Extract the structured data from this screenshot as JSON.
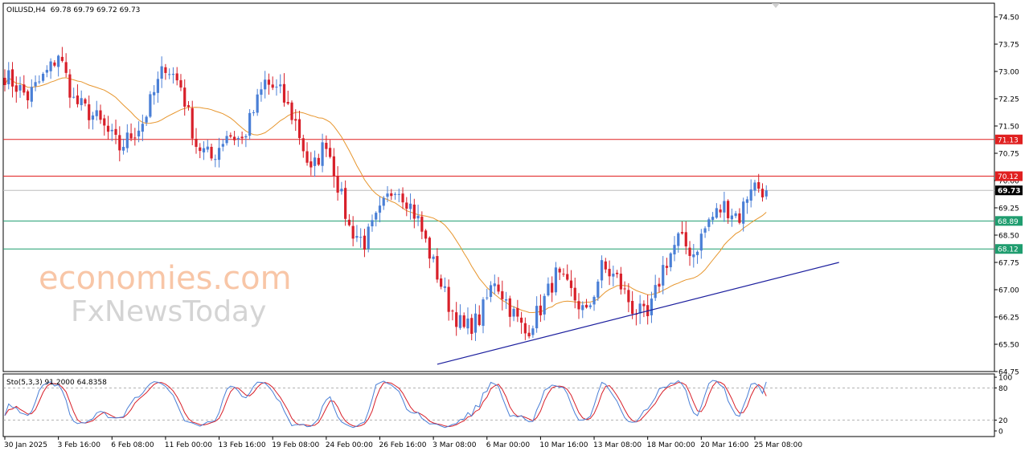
{
  "header": {
    "symbol_label": "OILUSD,H4",
    "ohlc": "69.78 69.79 69.72 69.73"
  },
  "watermark": {
    "line1": "economies.com",
    "line2": "FxNewsToday"
  },
  "colors": {
    "bull": "#4a7fd6",
    "bear": "#d8202a",
    "ma": "#e7962e",
    "resistance": "#e02020",
    "support": "#1f9d6f",
    "trendline": "#1c1f9e",
    "current": "#000000",
    "stoch_main": "#4a7fd6",
    "stoch_signal": "#d8202a"
  },
  "chart_data": [
    {
      "type": "candlestick",
      "symbol": "OILUSD",
      "timeframe": "H4",
      "ylim": [
        64.75,
        74.875
      ],
      "y_ticks": [
        "74.50",
        "73.75",
        "73.00",
        "72.25",
        "71.50",
        "70.75",
        "70.00",
        "69.25",
        "68.50",
        "67.75",
        "67.00",
        "66.25",
        "65.50",
        "64.75"
      ],
      "x_ticks": [
        "30 Jan 2025",
        "3 Feb 16:00",
        "6 Feb 08:00",
        "11 Feb 00:00",
        "13 Feb 16:00",
        "19 Feb 08:00",
        "24 Feb 00:00",
        "26 Feb 16:00",
        "3 Mar 08:00",
        "6 Mar 00:00",
        "10 Mar 16:00",
        "13 Mar 08:00",
        "18 Mar 00:00",
        "20 Mar 16:00",
        "25 Mar 08:00"
      ],
      "close_anchors": [
        [
          0,
          72.9
        ],
        [
          6,
          72.3
        ],
        [
          12,
          73.1
        ],
        [
          14,
          73.5
        ],
        [
          18,
          72.2
        ],
        [
          24,
          71.7
        ],
        [
          30,
          70.9
        ],
        [
          36,
          71.6
        ],
        [
          42,
          73.2
        ],
        [
          46,
          72.6
        ],
        [
          50,
          71.0
        ],
        [
          54,
          70.6
        ],
        [
          58,
          71.3
        ],
        [
          62,
          71.1
        ],
        [
          68,
          72.7
        ],
        [
          72,
          72.4
        ],
        [
          76,
          71.6
        ],
        [
          80,
          70.2
        ],
        [
          84,
          71.1
        ],
        [
          86,
          70.3
        ],
        [
          90,
          68.7
        ],
        [
          94,
          68.3
        ],
        [
          98,
          69.1
        ],
        [
          102,
          69.9
        ],
        [
          105,
          69.5
        ],
        [
          108,
          68.9
        ],
        [
          112,
          67.7
        ],
        [
          116,
          66.6
        ],
        [
          120,
          65.9
        ],
        [
          124,
          66.2
        ],
        [
          128,
          67.3
        ],
        [
          132,
          66.5
        ],
        [
          136,
          65.8
        ],
        [
          140,
          66.5
        ],
        [
          144,
          67.4
        ],
        [
          148,
          66.9
        ],
        [
          152,
          66.3
        ],
        [
          156,
          67.6
        ],
        [
          160,
          67.3
        ],
        [
          164,
          66.5
        ],
        [
          168,
          66.2
        ],
        [
          172,
          67.6
        ],
        [
          176,
          68.4
        ],
        [
          180,
          68.0
        ],
        [
          184,
          68.9
        ],
        [
          188,
          69.3
        ],
        [
          192,
          69.0
        ],
        [
          195,
          69.9
        ],
        [
          199,
          69.73
        ]
      ],
      "indicators": [
        {
          "type": "moving-average"
        }
      ],
      "horizontal_levels": [
        {
          "value": 71.13,
          "label": "71.13",
          "kind": "resistance"
        },
        {
          "value": 70.12,
          "label": "70.12",
          "kind": "resistance"
        },
        {
          "value": 69.73,
          "label": "69.73",
          "kind": "current"
        },
        {
          "value": 68.89,
          "label": "68.89",
          "kind": "support"
        },
        {
          "value": 68.12,
          "label": "68.12",
          "kind": "support"
        }
      ],
      "trendline": {
        "from": {
          "bar": 113,
          "value": 64.95
        },
        "to": {
          "bar": 218,
          "value": 67.75
        }
      }
    },
    {
      "type": "line",
      "title": "Sto(5,3,3) 91.2000 64.8358",
      "ylim": [
        0,
        100
      ],
      "y_ticks": [
        "100",
        "80",
        "20",
        "0"
      ],
      "levels": [
        80,
        20
      ],
      "series": [
        {
          "name": "Sto main",
          "value": 91.2
        },
        {
          "name": "Sto signal",
          "value": 64.8358
        }
      ]
    }
  ]
}
